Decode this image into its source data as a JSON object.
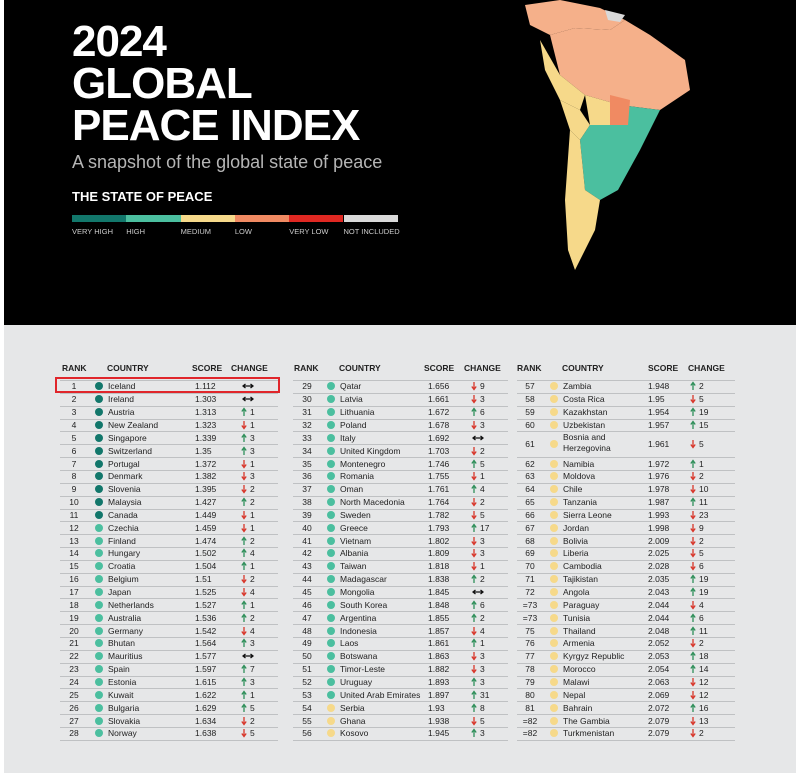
{
  "header": {
    "title_lines": [
      "2024",
      "GLOBAL",
      "PEACE INDEX"
    ],
    "subtitle": "A snapshot of the global state of peace",
    "section": "THE STATE OF PEACE",
    "legend": [
      {
        "label": "VERY HIGH",
        "color": "#12776b"
      },
      {
        "label": "HIGH",
        "color": "#4bbf9f"
      },
      {
        "label": "MEDIUM",
        "color": "#f6d98a"
      },
      {
        "label": "LOW",
        "color": "#f08a62"
      },
      {
        "label": "VERY LOW",
        "color": "#e02822"
      },
      {
        "label": "NOT INCLUDED",
        "color": "#d9d9d9"
      }
    ]
  },
  "tables": [
    {
      "columns": [
        "RANK",
        "COUNTRY",
        "SCORE",
        "CHANGE"
      ],
      "rows": [
        [
          1,
          "Iceland",
          1.112,
          "#12776b",
          "same"
        ],
        [
          2,
          "Ireland",
          1.303,
          "#12776b",
          "same"
        ],
        [
          3,
          "Austria",
          1.313,
          "#12776b",
          "up",
          1
        ],
        [
          4,
          "New Zealand",
          1.323,
          "#12776b",
          "down",
          1
        ],
        [
          5,
          "Singapore",
          1.339,
          "#12776b",
          "up",
          3
        ],
        [
          6,
          "Switzerland",
          1.35,
          "#12776b",
          "up",
          3
        ],
        [
          7,
          "Portugal",
          1.372,
          "#12776b",
          "down",
          1
        ],
        [
          8,
          "Denmark",
          1.382,
          "#12776b",
          "down",
          3
        ],
        [
          9,
          "Slovenia",
          1.395,
          "#12776b",
          "down",
          2
        ],
        [
          10,
          "Malaysia",
          1.427,
          "#12776b",
          "up",
          2
        ],
        [
          11,
          "Canada",
          1.449,
          "#12776b",
          "down",
          1
        ],
        [
          12,
          "Czechia",
          1.459,
          "#4bbf9f",
          "down",
          1
        ],
        [
          13,
          "Finland",
          1.474,
          "#4bbf9f",
          "up",
          2
        ],
        [
          14,
          "Hungary",
          1.502,
          "#4bbf9f",
          "up",
          4
        ],
        [
          15,
          "Croatia",
          1.504,
          "#4bbf9f",
          "up",
          1
        ],
        [
          16,
          "Belgium",
          1.51,
          "#4bbf9f",
          "down",
          2
        ],
        [
          17,
          "Japan",
          1.525,
          "#4bbf9f",
          "down",
          4
        ],
        [
          18,
          "Netherlands",
          1.527,
          "#4bbf9f",
          "up",
          1
        ],
        [
          19,
          "Australia",
          1.536,
          "#4bbf9f",
          "up",
          2
        ],
        [
          20,
          "Germany",
          1.542,
          "#4bbf9f",
          "down",
          4
        ],
        [
          21,
          "Bhutan",
          1.564,
          "#4bbf9f",
          "up",
          3
        ],
        [
          22,
          "Mauritius",
          1.577,
          "#4bbf9f",
          "same"
        ],
        [
          23,
          "Spain",
          1.597,
          "#4bbf9f",
          "up",
          7
        ],
        [
          24,
          "Estonia",
          1.615,
          "#4bbf9f",
          "up",
          3
        ],
        [
          25,
          "Kuwait",
          1.622,
          "#4bbf9f",
          "up",
          1
        ],
        [
          26,
          "Bulgaria",
          1.629,
          "#4bbf9f",
          "up",
          5
        ],
        [
          27,
          "Slovakia",
          1.634,
          "#4bbf9f",
          "down",
          2
        ],
        [
          28,
          "Norway",
          1.638,
          "#4bbf9f",
          "down",
          5
        ]
      ]
    },
    {
      "columns": [
        "RANK",
        "COUNTRY",
        "SCORE",
        "CHANGE"
      ],
      "rows": [
        [
          29,
          "Qatar",
          1.656,
          "#4bbf9f",
          "down",
          9
        ],
        [
          30,
          "Latvia",
          1.661,
          "#4bbf9f",
          "down",
          3
        ],
        [
          31,
          "Lithuania",
          1.672,
          "#4bbf9f",
          "up",
          6
        ],
        [
          32,
          "Poland",
          1.678,
          "#4bbf9f",
          "down",
          3
        ],
        [
          33,
          "Italy",
          1.692,
          "#4bbf9f",
          "same"
        ],
        [
          34,
          "United Kingdom",
          1.703,
          "#4bbf9f",
          "down",
          2
        ],
        [
          35,
          "Montenegro",
          1.746,
          "#4bbf9f",
          "up",
          5
        ],
        [
          36,
          "Romania",
          1.755,
          "#4bbf9f",
          "down",
          1
        ],
        [
          37,
          "Oman",
          1.761,
          "#4bbf9f",
          "up",
          4
        ],
        [
          38,
          "North Macedonia",
          1.764,
          "#4bbf9f",
          "down",
          2
        ],
        [
          39,
          "Sweden",
          1.782,
          "#4bbf9f",
          "down",
          5
        ],
        [
          40,
          "Greece",
          1.793,
          "#4bbf9f",
          "up",
          17
        ],
        [
          41,
          "Vietnam",
          1.802,
          "#4bbf9f",
          "down",
          3
        ],
        [
          42,
          "Albania",
          1.809,
          "#4bbf9f",
          "down",
          3
        ],
        [
          43,
          "Taiwan",
          1.818,
          "#4bbf9f",
          "down",
          1
        ],
        [
          44,
          "Madagascar",
          1.838,
          "#4bbf9f",
          "up",
          2
        ],
        [
          45,
          "Mongolia",
          1.845,
          "#4bbf9f",
          "same"
        ],
        [
          46,
          "South Korea",
          1.848,
          "#4bbf9f",
          "up",
          6
        ],
        [
          47,
          "Argentina",
          1.855,
          "#4bbf9f",
          "up",
          2
        ],
        [
          48,
          "Indonesia",
          1.857,
          "#4bbf9f",
          "down",
          4
        ],
        [
          49,
          "Laos",
          1.861,
          "#4bbf9f",
          "up",
          1
        ],
        [
          50,
          "Botswana",
          1.863,
          "#4bbf9f",
          "down",
          3
        ],
        [
          51,
          "Timor-Leste",
          1.882,
          "#4bbf9f",
          "down",
          3
        ],
        [
          52,
          "Uruguay",
          1.893,
          "#4bbf9f",
          "up",
          3
        ],
        [
          53,
          "United Arab Emirates",
          1.897,
          "#4bbf9f",
          "up",
          31
        ],
        [
          54,
          "Serbia",
          1.93,
          "#f6d98a",
          "up",
          8
        ],
        [
          55,
          "Ghana",
          1.938,
          "#f6d98a",
          "down",
          5
        ],
        [
          56,
          "Kosovo",
          1.945,
          "#f6d98a",
          "up",
          3
        ]
      ]
    },
    {
      "columns": [
        "RANK",
        "COUNTRY",
        "SCORE",
        "CHANGE"
      ],
      "rows": [
        [
          57,
          "Zambia",
          1.948,
          "#f6d98a",
          "up",
          2
        ],
        [
          58,
          "Costa Rica",
          1.95,
          "#f6d98a",
          "down",
          5
        ],
        [
          59,
          "Kazakhstan",
          1.954,
          "#f6d98a",
          "up",
          19
        ],
        [
          60,
          "Uzbekistan",
          1.957,
          "#f6d98a",
          "up",
          15
        ],
        [
          61,
          "Bosnia and Herzegovina",
          1.961,
          "#f6d98a",
          "down",
          5
        ],
        [
          62,
          "Namibia",
          1.972,
          "#f6d98a",
          "up",
          1
        ],
        [
          63,
          "Moldova",
          1.976,
          "#f6d98a",
          "down",
          2
        ],
        [
          64,
          "Chile",
          1.978,
          "#f6d98a",
          "down",
          10
        ],
        [
          65,
          "Tanzania",
          1.987,
          "#f6d98a",
          "up",
          11
        ],
        [
          66,
          "Sierra Leone",
          1.993,
          "#f6d98a",
          "down",
          23
        ],
        [
          67,
          "Jordan",
          1.998,
          "#f6d98a",
          "down",
          9
        ],
        [
          68,
          "Bolivia",
          2.009,
          "#f6d98a",
          "down",
          2
        ],
        [
          69,
          "Liberia",
          2.025,
          "#f6d98a",
          "down",
          5
        ],
        [
          70,
          "Cambodia",
          2.028,
          "#f6d98a",
          "down",
          6
        ],
        [
          71,
          "Tajikistan",
          2.035,
          "#f6d98a",
          "up",
          19
        ],
        [
          72,
          "Angola",
          2.043,
          "#f6d98a",
          "up",
          19
        ],
        [
          "=73",
          "Paraguay",
          2.044,
          "#f6d98a",
          "down",
          4
        ],
        [
          "=73",
          "Tunisia",
          2.044,
          "#f6d98a",
          "up",
          6
        ],
        [
          75,
          "Thailand",
          2.048,
          "#f6d98a",
          "up",
          11
        ],
        [
          76,
          "Armenia",
          2.052,
          "#f6d98a",
          "down",
          2
        ],
        [
          77,
          "Kyrgyz Republic",
          2.053,
          "#f6d98a",
          "up",
          18
        ],
        [
          78,
          "Morocco",
          2.054,
          "#f6d98a",
          "up",
          14
        ],
        [
          79,
          "Malawi",
          2.063,
          "#f6d98a",
          "down",
          12
        ],
        [
          80,
          "Nepal",
          2.069,
          "#f6d98a",
          "down",
          12
        ],
        [
          81,
          "Bahrain",
          2.072,
          "#f6d98a",
          "up",
          16
        ],
        [
          "=82",
          "The Gambia",
          2.079,
          "#f6d98a",
          "down",
          13
        ],
        [
          "=82",
          "Turkmenistan",
          2.079,
          "#f6d98a",
          "down",
          2
        ]
      ]
    }
  ]
}
